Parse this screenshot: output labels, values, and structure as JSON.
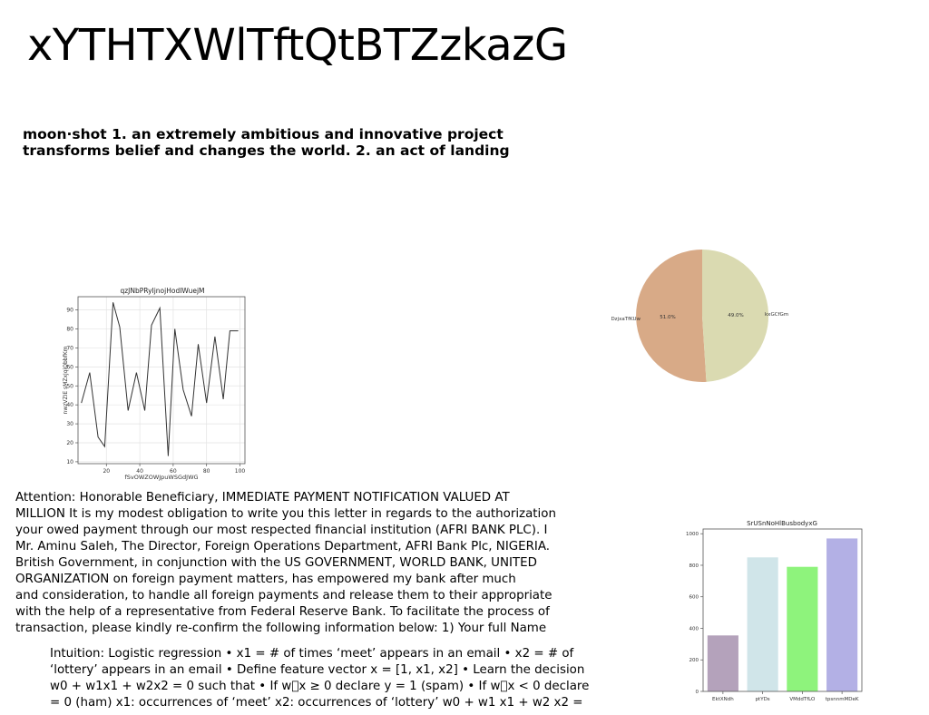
{
  "title": "xYTHTXWlTftQtBTZzkazG",
  "definition_lines": [
    "moon·shot 1. an extremely ambitious and innovative project",
    "transforms belief and changes the world. 2. an act of landing"
  ],
  "letter_lines": [
    "Attention: Honorable Beneficiary, IMMEDIATE PAYMENT NOTIFICATION VALUED AT",
    "MILLION It is my modest obligation to write you this letter in regards to the authorization",
    "your owed payment through our most respected financial institution (AFRI BANK PLC). I",
    "Mr. Aminu Saleh, The Director, Foreign Operations Department, AFRI Bank Plc, NIGERIA.",
    "British Government, in conjunction with the US GOVERNMENT, WORLD BANK, UNITED",
    "ORGANIZATION on foreign payment matters, has empowered my bank after much",
    "and consideration, to handle all foreign payments and release them to their appropriate",
    "with the help of a representative from Federal Reserve Bank. To facilitate the process of",
    "transaction, please kindly re-confirm the following information below: 1) Your full Name"
  ],
  "intuition_lines": [
    "Intuition: Logistic regression • x1 = # of times ‘meet’ appears in an email • x2 = # of",
    "‘lottery’ appears in an email • Define feature vector x = [1, x1, x2] • Learn the decision",
    "w0 + w1x1 + w2x2 = 0 such that • If w\u0000x ≥ 0 declare y = 1 (spam) • If w\u0000x < 0 declare",
    "= 0 (ham) x1: occurrences of ‘meet’ x2: occurrences of ‘lottery’ w0 + w1 x1 + w2 x2 ="
  ],
  "chart_data": [
    {
      "type": "line",
      "title": "qzJNbPRyIjnojHodIWuejM",
      "xlabel": "fSvOWZOWJpuWSGdJWG",
      "ylabel": "nwzVZIE sMZxJqiQbbfKm",
      "xlim": [
        3,
        103
      ],
      "ylim": [
        9,
        97
      ],
      "xticks": [
        20,
        40,
        60,
        80,
        100
      ],
      "yticks": [
        10,
        20,
        30,
        40,
        50,
        60,
        70,
        80,
        90
      ],
      "grid": true,
      "color": "#333333",
      "x": [
        5,
        10,
        15,
        19,
        24,
        28,
        33,
        38,
        43,
        47,
        52,
        57,
        61,
        66,
        71,
        75,
        80,
        85,
        90,
        94,
        99
      ],
      "y": [
        41,
        57,
        23,
        18,
        94,
        81,
        37,
        57,
        37,
        82,
        91,
        13,
        80,
        48,
        34,
        72,
        41,
        76,
        43,
        79,
        79
      ]
    },
    {
      "type": "pie",
      "labels": [
        "DzjxaTfKUw",
        "kxGCfGm"
      ],
      "values": [
        51.0,
        49.0
      ],
      "value_labels": [
        "51.0%",
        "49.0%"
      ],
      "colors": [
        "#d8aa87",
        "#dadab1"
      ]
    },
    {
      "type": "bar",
      "title": "SrUSnNoHlBusbodyxG",
      "categories": [
        "EktXNdh",
        "ptYDs",
        "VMddTfLO",
        "tpsnnmMDeK"
      ],
      "values": [
        355,
        850,
        790,
        970
      ],
      "colors": [
        "#b4a2bb",
        "#d0e5e9",
        "#8ef37c",
        "#b3b0e5"
      ],
      "ylim": [
        0,
        1030
      ],
      "yticks": [
        0,
        200,
        400,
        600,
        800,
        1000
      ]
    }
  ]
}
